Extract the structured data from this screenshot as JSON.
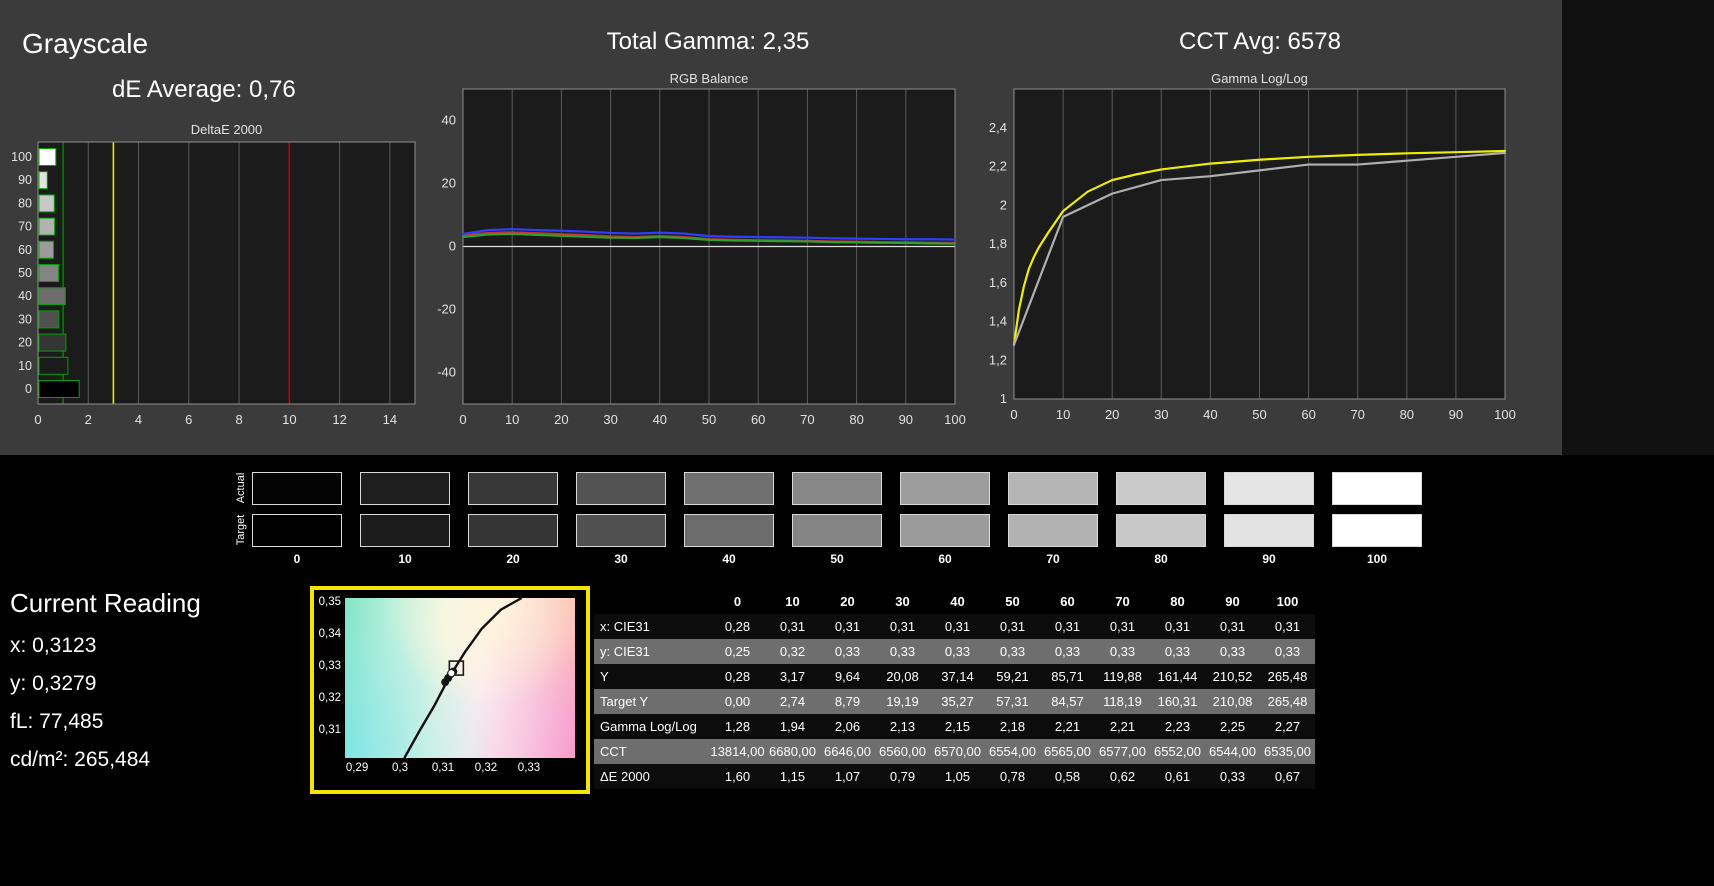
{
  "header": {
    "grayscale_title": "Grayscale",
    "de_average": "dE Average: 0,76",
    "total_gamma": "Total Gamma: 2,35",
    "cct_avg": "CCT Avg: 6578"
  },
  "chart_data": [
    {
      "id": "deltae",
      "type": "bar",
      "title": "DeltaE 2000",
      "orientation": "horizontal",
      "categories": [
        0,
        10,
        20,
        30,
        40,
        50,
        60,
        70,
        80,
        90,
        100
      ],
      "values": [
        1.6,
        1.15,
        1.07,
        0.79,
        1.05,
        0.78,
        0.58,
        0.62,
        0.61,
        0.33,
        0.67
      ],
      "xlim": [
        0,
        15
      ],
      "xticks": [
        0,
        2,
        4,
        6,
        8,
        10,
        12,
        14
      ],
      "bar_colors": [
        "#000000",
        "#1b1b1b",
        "#353535",
        "#505050",
        "#6c6c6c",
        "#848484",
        "#9b9b9b",
        "#b2b2b2",
        "#c8c8c8",
        "#e3e3e3",
        "#ffffff"
      ],
      "reference_lines": [
        {
          "value": 1,
          "color": "#008000",
          "name": "green-target"
        },
        {
          "value": 3,
          "color": "#e8e800",
          "name": "yellow-warning"
        },
        {
          "value": 10,
          "color": "#cc0000",
          "name": "red-error"
        }
      ]
    },
    {
      "id": "rgb_balance",
      "type": "line",
      "title": "RGB Balance",
      "ylim": [
        -50,
        50
      ],
      "zero_line": true,
      "yticks": [
        {
          "v": 40,
          "label": "40"
        },
        {
          "v": 20,
          "label": "20"
        },
        {
          "v": 0,
          "label": "0"
        },
        {
          "v": -20,
          "label": "-20"
        },
        {
          "v": -40,
          "label": "-40"
        }
      ],
      "xticks": [
        0,
        10,
        20,
        30,
        40,
        50,
        60,
        70,
        80,
        90,
        100
      ],
      "series": [
        {
          "name": "red-balance",
          "color": "#c83232",
          "x": [
            0,
            5,
            10,
            15,
            20,
            25,
            30,
            35,
            40,
            45,
            50,
            55,
            60,
            65,
            70,
            75,
            80,
            85,
            90,
            95,
            100
          ],
          "values": [
            3.5,
            4.3,
            4.5,
            4.2,
            3.9,
            3.6,
            3.2,
            3.0,
            3.3,
            3.0,
            2.3,
            2.1,
            2.0,
            1.9,
            1.8,
            1.6,
            1.5,
            1.4,
            1.3,
            1.2,
            1.1
          ]
        },
        {
          "name": "green-balance",
          "color": "#2f9f2f",
          "x": [
            0,
            5,
            10,
            15,
            20,
            25,
            30,
            35,
            40,
            45,
            50,
            55,
            60,
            65,
            70,
            75,
            80,
            85,
            90,
            95,
            100
          ],
          "values": [
            3.0,
            3.8,
            4.0,
            3.7,
            3.4,
            3.1,
            2.8,
            2.7,
            3.0,
            2.7,
            2.1,
            1.9,
            1.8,
            1.7,
            1.6,
            1.4,
            1.3,
            1.2,
            1.1,
            1.0,
            0.9
          ]
        },
        {
          "name": "blue-balance",
          "color": "#2f3fff",
          "x": [
            0,
            5,
            10,
            15,
            20,
            25,
            30,
            35,
            40,
            45,
            50,
            55,
            60,
            65,
            70,
            75,
            80,
            85,
            90,
            95,
            100
          ],
          "values": [
            4.0,
            5.2,
            5.5,
            5.2,
            5.0,
            4.7,
            4.3,
            4.1,
            4.4,
            4.1,
            3.3,
            3.1,
            3.0,
            2.9,
            2.8,
            2.6,
            2.5,
            2.4,
            2.3,
            2.3,
            2.2
          ]
        }
      ]
    },
    {
      "id": "gamma",
      "type": "line",
      "title": "Gamma Log/Log",
      "ylim": [
        1,
        2.6
      ],
      "zero_line": false,
      "yticks": [
        {
          "v": 2.4,
          "label": "2,4"
        },
        {
          "v": 2.2,
          "label": "2,2"
        },
        {
          "v": 2.0,
          "label": "2"
        },
        {
          "v": 1.8,
          "label": "1,8"
        },
        {
          "v": 1.6,
          "label": "1,6"
        },
        {
          "v": 1.4,
          "label": "1,4"
        },
        {
          "v": 1.2,
          "label": "1,2"
        },
        {
          "v": 1.0,
          "label": "1"
        }
      ],
      "xticks": [
        0,
        10,
        20,
        30,
        40,
        50,
        60,
        70,
        80,
        90,
        100
      ],
      "series": [
        {
          "name": "target-gamma",
          "color": "#f0ee00",
          "x": [
            0,
            1,
            2,
            3,
            4,
            5,
            7,
            10,
            15,
            20,
            25,
            30,
            40,
            50,
            60,
            70,
            80,
            90,
            100
          ],
          "values": [
            1.28,
            1.46,
            1.58,
            1.67,
            1.73,
            1.78,
            1.86,
            1.97,
            2.07,
            2.13,
            2.16,
            2.185,
            2.215,
            2.235,
            2.25,
            2.26,
            2.268,
            2.274,
            2.28
          ]
        },
        {
          "name": "measured-gamma",
          "color": "#b0b0b0",
          "x": [
            0,
            10,
            20,
            30,
            40,
            50,
            60,
            70,
            80,
            90,
            100
          ],
          "values": [
            1.28,
            1.94,
            2.06,
            2.13,
            2.15,
            2.18,
            2.21,
            2.21,
            2.23,
            2.25,
            2.27
          ]
        }
      ]
    }
  ],
  "swatches": {
    "actual_label": "Actual",
    "target_label": "Target",
    "levels": [
      "0",
      "10",
      "20",
      "30",
      "40",
      "50",
      "60",
      "70",
      "80",
      "90",
      "100"
    ],
    "actual_colors": [
      "#030303",
      "#1e1e1e",
      "#383838",
      "#535353",
      "#6f6f6f",
      "#878787",
      "#9d9d9d",
      "#b4b4b4",
      "#cacaca",
      "#e5e5e5",
      "#ffffff"
    ],
    "target_colors": [
      "#000000",
      "#1b1b1b",
      "#353535",
      "#505050",
      "#6c6c6c",
      "#848484",
      "#9b9b9b",
      "#b2b2b2",
      "#c8c8c8",
      "#e3e3e3",
      "#ffffff"
    ]
  },
  "current_reading": {
    "title": "Current Reading",
    "line_x": "x: 0,3123",
    "line_y": "y: 0,3279",
    "line_fl": "fL: 77,485",
    "line_cdm2": "cd/m²: 265,484"
  },
  "cie": {
    "xlim": [
      0.2872,
      0.3407
    ],
    "ylim": [
      0.3016,
      0.3516
    ],
    "yticks": [
      {
        "v": 0.35,
        "label": "0,35"
      },
      {
        "v": 0.34,
        "label": "0,34"
      },
      {
        "v": 0.33,
        "label": "0,33"
      },
      {
        "v": 0.32,
        "label": "0,32"
      },
      {
        "v": 0.31,
        "label": "0,31"
      }
    ],
    "xticks": [
      {
        "v": 0.29,
        "label": "0,29"
      },
      {
        "v": 0.3,
        "label": "0,3"
      },
      {
        "v": 0.31,
        "label": "0,31"
      },
      {
        "v": 0.32,
        "label": "0,32"
      },
      {
        "v": 0.33,
        "label": "0,33"
      }
    ],
    "locus": [
      [
        0.301,
        0.3016
      ],
      [
        0.3045,
        0.31
      ],
      [
        0.308,
        0.318
      ],
      [
        0.3115,
        0.327
      ],
      [
        0.315,
        0.3345
      ],
      [
        0.319,
        0.342
      ],
      [
        0.3235,
        0.348
      ],
      [
        0.3283,
        0.3516
      ]
    ],
    "points": [
      [
        0.3105,
        0.3253
      ],
      [
        0.3112,
        0.3266
      ],
      [
        0.3118,
        0.3278
      ],
      [
        0.3124,
        0.3286
      ]
    ],
    "marker": [
      0.3131,
      0.3297
    ],
    "border_color": "#f2e500"
  },
  "table": {
    "columns": [
      "",
      "0",
      "10",
      "20",
      "30",
      "40",
      "50",
      "60",
      "70",
      "80",
      "90",
      "100"
    ],
    "rows": [
      {
        "label": "x: CIE31",
        "values": [
          "0,28",
          "0,31",
          "0,31",
          "0,31",
          "0,31",
          "0,31",
          "0,31",
          "0,31",
          "0,31",
          "0,31",
          "0,31"
        ]
      },
      {
        "label": "y: CIE31",
        "values": [
          "0,25",
          "0,32",
          "0,33",
          "0,33",
          "0,33",
          "0,33",
          "0,33",
          "0,33",
          "0,33",
          "0,33",
          "0,33"
        ]
      },
      {
        "label": "Y",
        "values": [
          "0,28",
          "3,17",
          "9,64",
          "20,08",
          "37,14",
          "59,21",
          "85,71",
          "119,88",
          "161,44",
          "210,52",
          "265,48"
        ]
      },
      {
        "label": "Target Y",
        "values": [
          "0,00",
          "2,74",
          "8,79",
          "19,19",
          "35,27",
          "57,31",
          "84,57",
          "118,19",
          "160,31",
          "210,08",
          "265,48"
        ]
      },
      {
        "label": "Gamma Log/Log",
        "values": [
          "1,28",
          "1,94",
          "2,06",
          "2,13",
          "2,15",
          "2,18",
          "2,21",
          "2,21",
          "2,23",
          "2,25",
          "2,27"
        ]
      },
      {
        "label": "CCT",
        "values": [
          "13814,00",
          "6680,00",
          "6646,00",
          "6560,00",
          "6570,00",
          "6554,00",
          "6565,00",
          "6577,00",
          "6552,00",
          "6544,00",
          "6535,00"
        ]
      },
      {
        "label": "ΔE 2000",
        "values": [
          "1,60",
          "1,15",
          "1,07",
          "0,79",
          "1,05",
          "0,78",
          "0,58",
          "0,62",
          "0,61",
          "0,33",
          "0,67"
        ]
      }
    ]
  }
}
